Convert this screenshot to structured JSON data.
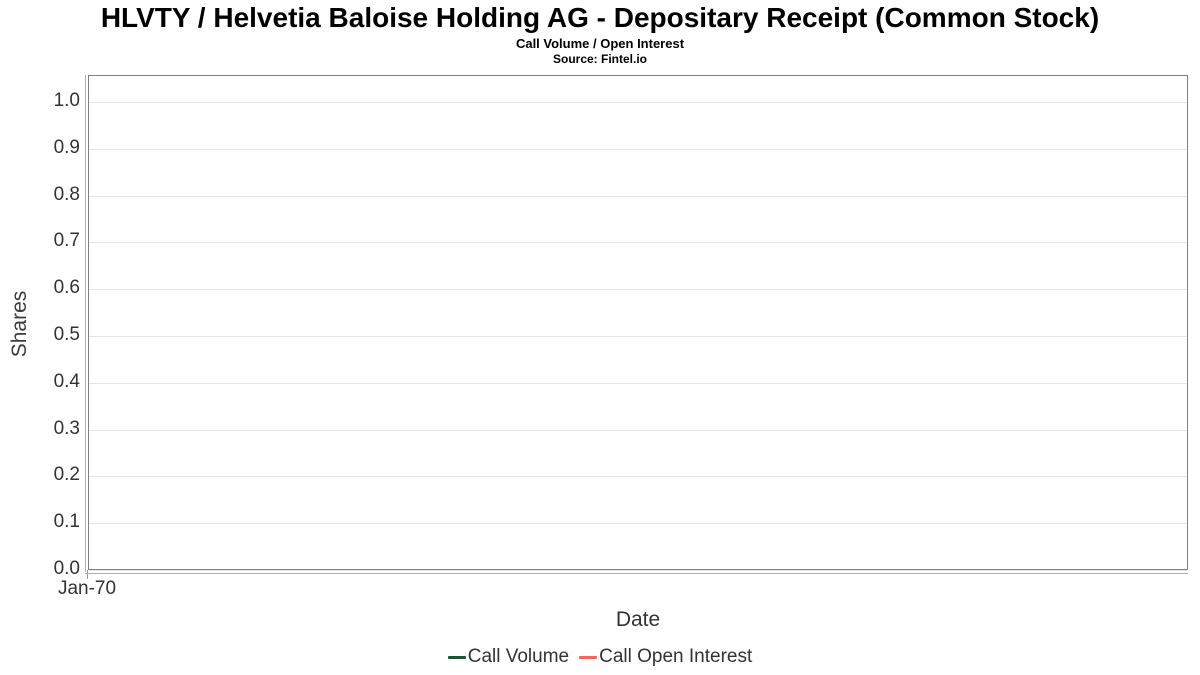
{
  "header": {
    "title": "HLVTY / Helvetia Baloise Holding AG - Depositary Receipt (Common Stock)",
    "subtitle": "Call Volume / Open Interest",
    "source": "Source: Fintel.io"
  },
  "chart_data": {
    "type": "line",
    "title": "HLVTY / Helvetia Baloise Holding AG - Depositary Receipt (Common Stock)",
    "subtitle": "Call Volume / Open Interest",
    "source": "Source: Fintel.io",
    "xlabel": "Date",
    "ylabel": "Shares",
    "ylim": [
      0.0,
      1.05
    ],
    "ytick_labels": [
      "1.0",
      "0.9",
      "0.8",
      "0.7",
      "0.6",
      "0.5",
      "0.4",
      "0.3",
      "0.2",
      "0.1",
      "0.0"
    ],
    "xtick_labels": [
      "Jan-70"
    ],
    "grid": true,
    "legend_position": "bottom",
    "x": [],
    "series": [
      {
        "name": "Call Volume",
        "color": "#1d5433",
        "values": []
      },
      {
        "name": "Call Open Interest",
        "color": "#f8655e",
        "values": []
      }
    ],
    "note_empty": "no data plotted"
  },
  "colors": {
    "plot_border": "#808080",
    "gridline": "#e6e6e6",
    "axis_line": "#b0b0b0",
    "tick_text": "#333333",
    "title_text": "#000000"
  }
}
